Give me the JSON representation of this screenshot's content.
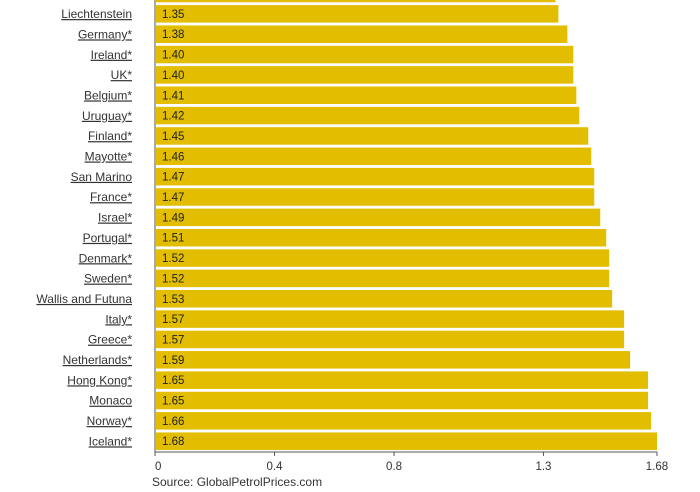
{
  "chart_data": {
    "type": "bar",
    "orientation": "horizontal",
    "categories": [
      "",
      "Liechtenstein ",
      "Germany*",
      "Ireland*",
      "UK*",
      "Belgium*",
      "Uruguay*",
      "Finland*",
      "Mayotte*",
      "San Marino ",
      "France*",
      "Israel*",
      "Portugal*",
      "Denmark*",
      "Sweden*",
      "Wallis and Futuna",
      "Italy*",
      "Greece*",
      "Netherlands*",
      "Hong Kong*",
      "Monaco ",
      "Norway*",
      "Iceland*"
    ],
    "values": [
      1.34,
      1.35,
      1.38,
      1.4,
      1.4,
      1.41,
      1.42,
      1.45,
      1.46,
      1.47,
      1.47,
      1.49,
      1.51,
      1.52,
      1.52,
      1.53,
      1.57,
      1.57,
      1.59,
      1.65,
      1.65,
      1.66,
      1.68
    ],
    "value_labels": [
      "",
      "1.35",
      "1.38",
      "1.40",
      "1.40",
      "1.41",
      "1.42",
      "1.45",
      "1.46",
      "1.47",
      "1.47",
      "1.49",
      "1.51",
      "1.52",
      "1.52",
      "1.53",
      "1.57",
      "1.57",
      "1.59",
      "1.65",
      "1.65",
      "1.66",
      "1.68"
    ],
    "x_ticks": [
      0,
      0.4,
      0.8,
      1.3,
      1.68
    ],
    "x_tick_labels": [
      "0",
      "0.4",
      "0.8",
      "1.3",
      "1.68"
    ],
    "xlim": [
      0,
      1.68
    ],
    "bar_color": "#e2bd00",
    "grid": false,
    "legend": "none",
    "source": "Source: GlobalPetrolPrices.com"
  }
}
